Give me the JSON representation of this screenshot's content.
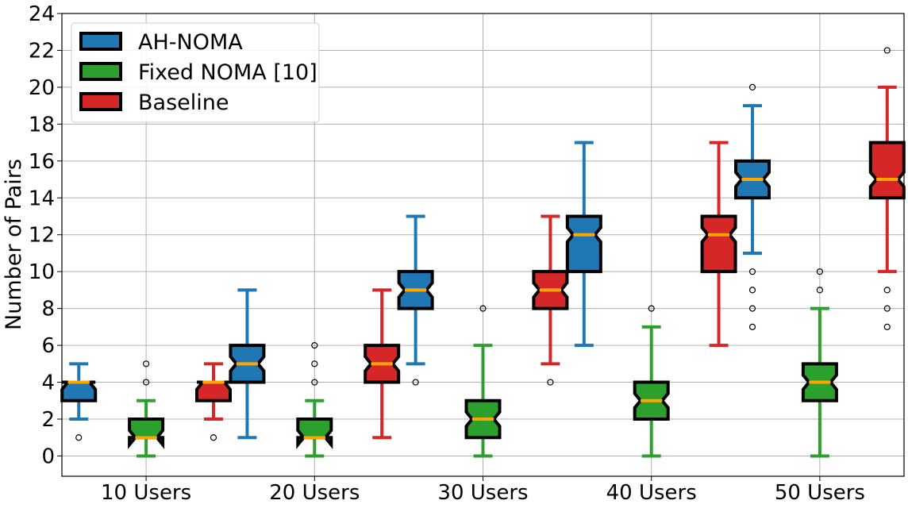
{
  "chart_data": {
    "type": "boxplot",
    "notched": true,
    "title": "",
    "xlabel": "",
    "ylabel": "Number of Pairs",
    "ylim": [
      -1.1,
      24
    ],
    "yticks": [
      0,
      2,
      4,
      6,
      8,
      10,
      12,
      14,
      16,
      18,
      20,
      22,
      24
    ],
    "grid": true,
    "legend_position": "top-left",
    "categories": [
      "10 Users",
      "20 Users",
      "30 Users",
      "40 Users",
      "50 Users"
    ],
    "median_color": "#ffa500",
    "series": [
      {
        "name": "AH-NOMA",
        "color": "#1f77b4",
        "boxes": [
          {
            "whislo": 2,
            "q1": 3,
            "med": 4,
            "q3": 4,
            "whishi": 5,
            "fliers": [
              1
            ]
          },
          {
            "whislo": 1,
            "q1": 4,
            "med": 5,
            "q3": 6,
            "whishi": 9,
            "fliers": []
          },
          {
            "whislo": 5,
            "q1": 8,
            "med": 9,
            "q3": 10,
            "whishi": 13,
            "fliers": [
              4
            ]
          },
          {
            "whislo": 6,
            "q1": 10,
            "med": 12,
            "q3": 13,
            "whishi": 17,
            "fliers": []
          },
          {
            "whislo": 11,
            "q1": 14,
            "med": 15,
            "q3": 16,
            "whishi": 19,
            "fliers": [
              7,
              8,
              9,
              10,
              20
            ]
          }
        ]
      },
      {
        "name": "Fixed NOMA [10]",
        "color": "#2ca02c",
        "boxes": [
          {
            "whislo": 0,
            "q1": 1,
            "med": 1,
            "q3": 2,
            "whishi": 3,
            "fliers": [
              4,
              5
            ]
          },
          {
            "whislo": 0,
            "q1": 1,
            "med": 1,
            "q3": 2,
            "whishi": 3,
            "fliers": [
              4,
              5,
              6
            ]
          },
          {
            "whislo": 0,
            "q1": 1,
            "med": 2,
            "q3": 3,
            "whishi": 6,
            "fliers": [
              8
            ]
          },
          {
            "whislo": 0,
            "q1": 2,
            "med": 3,
            "q3": 4,
            "whishi": 7,
            "fliers": [
              8
            ]
          },
          {
            "whislo": 0,
            "q1": 3,
            "med": 4,
            "q3": 5,
            "whishi": 8,
            "fliers": [
              9,
              10
            ]
          }
        ]
      },
      {
        "name": "Baseline",
        "color": "#d62728",
        "boxes": [
          {
            "whislo": 2,
            "q1": 3,
            "med": 4,
            "q3": 4,
            "whishi": 5,
            "fliers": [
              1
            ]
          },
          {
            "whislo": 1,
            "q1": 4,
            "med": 5,
            "q3": 6,
            "whishi": 9,
            "fliers": []
          },
          {
            "whislo": 5,
            "q1": 8,
            "med": 9,
            "q3": 10,
            "whishi": 13,
            "fliers": [
              4
            ]
          },
          {
            "whislo": 6,
            "q1": 10,
            "med": 12,
            "q3": 13,
            "whishi": 17,
            "fliers": []
          },
          {
            "whislo": 10,
            "q1": 14,
            "med": 15,
            "q3": 17,
            "whishi": 20,
            "fliers": [
              7,
              8,
              9,
              22
            ]
          }
        ]
      }
    ]
  }
}
